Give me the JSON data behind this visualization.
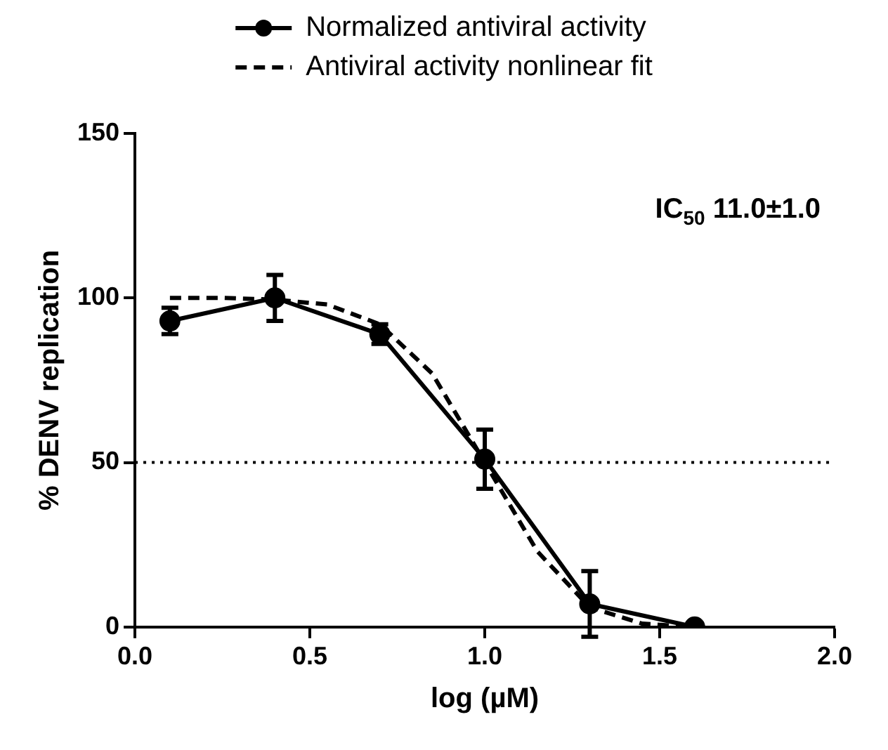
{
  "chart_data": {
    "type": "line",
    "xlabel": "log (µM)",
    "ylabel": "% DENV replication",
    "xlim": [
      0,
      2
    ],
    "xticks": [
      {
        "value": 0,
        "label": "0.0"
      },
      {
        "value": 0.5,
        "label": "0.5"
      },
      {
        "value": 1,
        "label": "1.0"
      },
      {
        "value": 1.5,
        "label": "1.5"
      },
      {
        "value": 2,
        "label": "2.0"
      }
    ],
    "ylim": [
      0,
      150
    ],
    "yticks": [
      0,
      50,
      100,
      150
    ],
    "grid": false,
    "legend": "top",
    "series": [
      {
        "name": "Normalized antiviral activity",
        "color": "#000000",
        "marker": "circle",
        "line_style": "solid",
        "x": [
          0.1,
          0.4,
          0.7,
          1.0,
          1.3,
          1.6
        ],
        "values": [
          93,
          100,
          89,
          51,
          7,
          0
        ],
        "errors": [
          4,
          7,
          3,
          9,
          10,
          null
        ]
      },
      {
        "name": "Antiviral activity nonlinear fit",
        "color": "#000000",
        "marker": "none",
        "line_style": "dashed",
        "x": [
          0.1,
          0.25,
          0.4,
          0.55,
          0.7,
          0.85,
          1.0,
          1.15,
          1.3,
          1.45,
          1.6
        ],
        "values": [
          100,
          100,
          99.5,
          98,
          92,
          77,
          50,
          23,
          6,
          1,
          0
        ]
      }
    ],
    "ref_lines": [
      {
        "axis": "y",
        "value": 50,
        "line_style": "dotted",
        "color": "#000000"
      }
    ],
    "annotations": [
      "IC$_{50}$ 11.0±1.0"
    ]
  }
}
